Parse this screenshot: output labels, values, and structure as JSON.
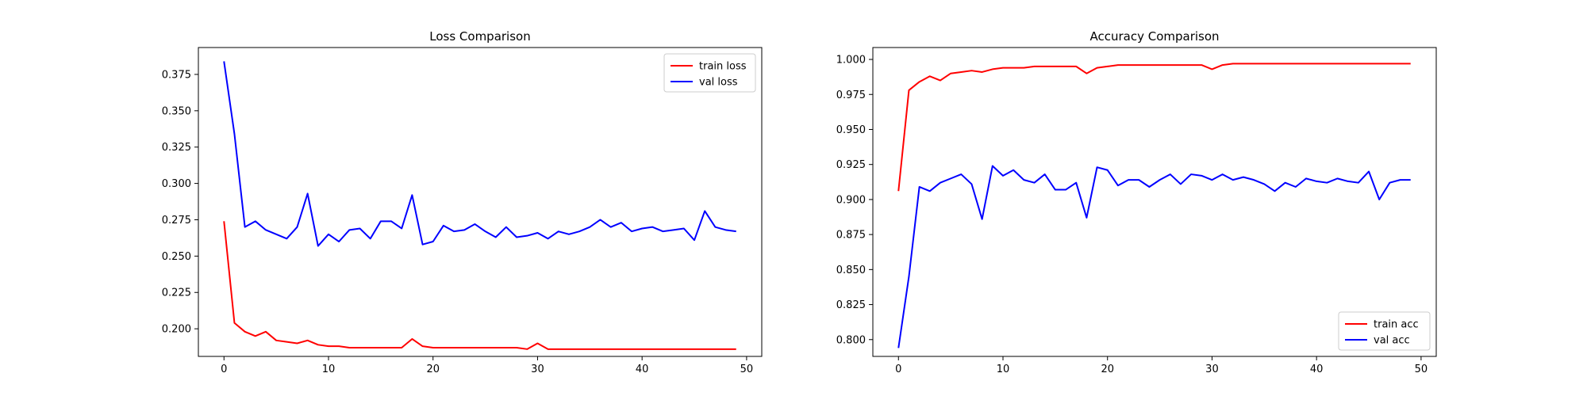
{
  "chart_data": [
    {
      "type": "line",
      "title": "Loss Comparison",
      "xlabel": "",
      "ylabel": "",
      "xlim": [
        -2.45,
        51.45
      ],
      "ylim": [
        0.181,
        0.3935
      ],
      "xticks": [
        0,
        10,
        20,
        30,
        40,
        50
      ],
      "xtick_labels": [
        "0",
        "10",
        "20",
        "30",
        "40",
        "50"
      ],
      "yticks": [
        0.2,
        0.225,
        0.25,
        0.275,
        0.3,
        0.325,
        0.35,
        0.375
      ],
      "ytick_labels": [
        "0.200",
        "0.225",
        "0.250",
        "0.275",
        "0.300",
        "0.325",
        "0.350",
        "0.375"
      ],
      "grid": false,
      "legend": "top-right",
      "x": [
        0,
        1,
        2,
        3,
        4,
        5,
        6,
        7,
        8,
        9,
        10,
        11,
        12,
        13,
        14,
        15,
        16,
        17,
        18,
        19,
        20,
        21,
        22,
        23,
        24,
        25,
        26,
        27,
        28,
        29,
        30,
        31,
        32,
        33,
        34,
        35,
        36,
        37,
        38,
        39,
        40,
        41,
        42,
        43,
        44,
        45,
        46,
        47,
        48,
        49
      ],
      "series": [
        {
          "name": "train loss",
          "color": "#ff0000",
          "values": [
            0.274,
            0.204,
            0.198,
            0.195,
            0.198,
            0.192,
            0.191,
            0.19,
            0.192,
            0.189,
            0.188,
            0.188,
            0.187,
            0.187,
            0.187,
            0.187,
            0.187,
            0.187,
            0.193,
            0.188,
            0.187,
            0.187,
            0.187,
            0.187,
            0.187,
            0.187,
            0.187,
            0.187,
            0.187,
            0.186,
            0.19,
            0.186,
            0.186,
            0.186,
            0.186,
            0.186,
            0.186,
            0.186,
            0.186,
            0.186,
            0.186,
            0.186,
            0.186,
            0.186,
            0.186,
            0.186,
            0.186,
            0.186,
            0.186,
            0.186
          ]
        },
        {
          "name": "val loss",
          "color": "#0000ff",
          "values": [
            0.384,
            0.334,
            0.27,
            0.274,
            0.268,
            0.265,
            0.262,
            0.27,
            0.293,
            0.257,
            0.265,
            0.26,
            0.268,
            0.269,
            0.262,
            0.274,
            0.274,
            0.269,
            0.292,
            0.258,
            0.26,
            0.271,
            0.267,
            0.268,
            0.272,
            0.267,
            0.263,
            0.27,
            0.263,
            0.264,
            0.266,
            0.262,
            0.267,
            0.265,
            0.267,
            0.27,
            0.275,
            0.27,
            0.273,
            0.267,
            0.269,
            0.27,
            0.267,
            0.268,
            0.269,
            0.261,
            0.281,
            0.27,
            0.268,
            0.267
          ]
        }
      ]
    },
    {
      "type": "line",
      "title": "Accuracy Comparison",
      "xlabel": "",
      "ylabel": "",
      "xlim": [
        -2.45,
        51.45
      ],
      "ylim": [
        0.788,
        1.0085
      ],
      "xticks": [
        0,
        10,
        20,
        30,
        40,
        50
      ],
      "xtick_labels": [
        "0",
        "10",
        "20",
        "30",
        "40",
        "50"
      ],
      "yticks": [
        0.8,
        0.825,
        0.85,
        0.875,
        0.9,
        0.925,
        0.95,
        0.975,
        1.0
      ],
      "ytick_labels": [
        "0.800",
        "0.825",
        "0.850",
        "0.875",
        "0.900",
        "0.925",
        "0.950",
        "0.975",
        "1.000"
      ],
      "grid": false,
      "legend": "bottom-right",
      "x": [
        0,
        1,
        2,
        3,
        4,
        5,
        6,
        7,
        8,
        9,
        10,
        11,
        12,
        13,
        14,
        15,
        16,
        17,
        18,
        19,
        20,
        21,
        22,
        23,
        24,
        25,
        26,
        27,
        28,
        29,
        30,
        31,
        32,
        33,
        34,
        35,
        36,
        37,
        38,
        39,
        40,
        41,
        42,
        43,
        44,
        45,
        46,
        47,
        48,
        49
      ],
      "series": [
        {
          "name": "train acc",
          "color": "#ff0000",
          "values": [
            0.906,
            0.978,
            0.984,
            0.988,
            0.985,
            0.99,
            0.991,
            0.992,
            0.991,
            0.993,
            0.994,
            0.994,
            0.994,
            0.995,
            0.995,
            0.995,
            0.995,
            0.995,
            0.99,
            0.994,
            0.995,
            0.996,
            0.996,
            0.996,
            0.996,
            0.996,
            0.996,
            0.996,
            0.996,
            0.996,
            0.993,
            0.996,
            0.997,
            0.997,
            0.997,
            0.997,
            0.997,
            0.997,
            0.997,
            0.997,
            0.997,
            0.997,
            0.997,
            0.997,
            0.997,
            0.997,
            0.997,
            0.997,
            0.997,
            0.997
          ]
        },
        {
          "name": "val acc",
          "color": "#0000ff",
          "values": [
            0.794,
            0.845,
            0.909,
            0.906,
            0.912,
            0.915,
            0.918,
            0.911,
            0.886,
            0.924,
            0.917,
            0.921,
            0.914,
            0.912,
            0.918,
            0.907,
            0.907,
            0.912,
            0.887,
            0.923,
            0.921,
            0.91,
            0.914,
            0.914,
            0.909,
            0.914,
            0.918,
            0.911,
            0.918,
            0.917,
            0.914,
            0.918,
            0.914,
            0.916,
            0.914,
            0.911,
            0.906,
            0.912,
            0.909,
            0.915,
            0.913,
            0.912,
            0.915,
            0.913,
            0.912,
            0.92,
            0.9,
            0.912,
            0.914,
            0.914
          ]
        }
      ]
    }
  ]
}
